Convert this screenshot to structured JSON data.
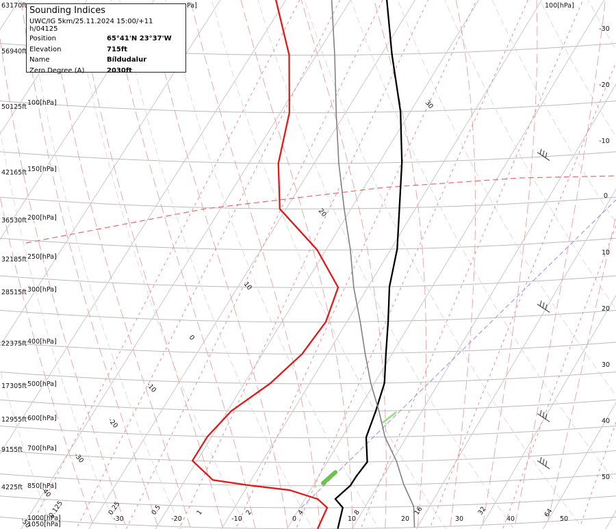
{
  "chart_data": {
    "type": "line",
    "title": "Sounding Indices",
    "subtitle": "UWC/IG 5km/25.11.2024 15:00/+11 h/04125",
    "info": [
      {
        "label": "Position",
        "value": "65°41'N 23°37'W"
      },
      {
        "label": "Elevation",
        "value": "715ft"
      },
      {
        "label": "Name",
        "value": "Bíldudalur"
      },
      {
        "label": "Zero Degree (A)",
        "value": "2030ft"
      }
    ],
    "pressure_levels": [
      {
        "alt": "63170ft",
        "hpa": ""
      },
      {
        "alt": "56940ft",
        "hpa": ""
      },
      {
        "alt": "50125ft",
        "hpa": "100[hPa]"
      },
      {
        "alt": "42165ft",
        "hpa": "150[hPa]"
      },
      {
        "alt": "36530ft",
        "hpa": "200[hPa]"
      },
      {
        "alt": "32185ft",
        "hpa": "250[hPa]"
      },
      {
        "alt": "28515ft",
        "hpa": "300[hPa]"
      },
      {
        "alt": "22375ft",
        "hpa": "400[hPa]"
      },
      {
        "alt": "17305ft",
        "hpa": "500[hPa]"
      },
      {
        "alt": "12955ft",
        "hpa": "600[hPa]"
      },
      {
        "alt": "9155ft",
        "hpa": "700[hPa]"
      },
      {
        "alt": "4225ft",
        "hpa": "850[hPa]"
      },
      {
        "alt": "",
        "hpa": "1000[hPa]"
      },
      {
        "alt": "",
        "hpa": "1050[hPa]"
      }
    ],
    "top_hpa_label": "Pa]",
    "top_right_hpa_label": "100[hPa]",
    "right_axis_ticks": [
      "-30",
      "-20",
      "-10",
      "0",
      "10",
      "20",
      "30",
      "40",
      "50"
    ],
    "bottom_temperature_ticks": [
      "-30",
      "-20",
      "-10",
      "0",
      "10",
      "20",
      "30",
      "40",
      "50"
    ],
    "mixing_ratio_ticks": [
      "0.125",
      "0.25",
      "0.5",
      "1",
      "2",
      "4",
      "8",
      "16",
      "32",
      "64"
    ],
    "isotherm_inline_labels": [
      "30",
      "20",
      "10",
      "0",
      "-10",
      "-20",
      "-30",
      "-40",
      "-50"
    ],
    "series": [
      {
        "name": "",
        "role": "temperature",
        "color": "#000000",
        "points": [
          [
            1050,
            7.7
          ],
          [
            1000,
            6.4
          ],
          [
            980,
            4.4
          ],
          [
            950,
            5.4
          ],
          [
            930,
            5.4
          ],
          [
            900,
            5.7
          ],
          [
            850,
            3.1
          ],
          [
            800,
            2.0
          ],
          [
            750,
            0.6
          ],
          [
            700,
            -2.1
          ],
          [
            650,
            -4.9
          ],
          [
            600,
            -8.1
          ],
          [
            550,
            -10.6
          ],
          [
            500,
            -14.3
          ],
          [
            450,
            -18.4
          ],
          [
            400,
            -23.6
          ],
          [
            350,
            -30.6
          ],
          [
            300,
            -38.1
          ],
          [
            250,
            -47.0
          ],
          [
            200,
            -55.4
          ],
          [
            170,
            -58.9
          ],
          [
            150,
            -58.9
          ],
          [
            130,
            -58.3
          ],
          [
            110,
            -58.8
          ],
          [
            100,
            -58.9
          ],
          [
            80,
            -62.0
          ],
          [
            70,
            -63.4
          ],
          [
            60,
            -61.8
          ]
        ]
      },
      {
        "name": "",
        "role": "dewpoint",
        "color": "#e01818",
        "points": [
          [
            1050,
            4.6
          ],
          [
            1000,
            4.0
          ],
          [
            980,
            1.7
          ],
          [
            960,
            -3.5
          ],
          [
            950,
            -10.3
          ],
          [
            940,
            -16.2
          ],
          [
            900,
            -21.2
          ],
          [
            850,
            -21.3
          ],
          [
            800,
            -20.2
          ],
          [
            750,
            -17.0
          ],
          [
            700,
            -15.0
          ],
          [
            650,
            -14.5
          ],
          [
            600,
            -16.0
          ],
          [
            550,
            -22.9
          ],
          [
            500,
            -32.7
          ],
          [
            450,
            -37.4
          ],
          [
            400,
            -40.7
          ],
          [
            350,
            -46.4
          ],
          [
            300,
            -55.4
          ],
          [
            250,
            -63.8
          ],
          [
            200,
            -68.0
          ],
          [
            170,
            -69.1
          ],
          [
            150,
            -70.0
          ],
          [
            130,
            -74.0
          ],
          [
            100,
            -77.1
          ],
          [
            80,
            -79.5
          ],
          [
            70,
            -82.5
          ],
          [
            60,
            -84.4
          ]
        ]
      },
      {
        "name": "",
        "role": "parcel",
        "color": "#808080",
        "points": [
          [
            1050,
            19.5
          ],
          [
            1000,
            17.3
          ],
          [
            950,
            13.6
          ],
          [
            900,
            10.2
          ],
          [
            850,
            6.0
          ],
          [
            800,
            2.5
          ],
          [
            750,
            -1.5
          ],
          [
            700,
            -5.3
          ],
          [
            650,
            -9.2
          ],
          [
            600,
            -13.6
          ],
          [
            550,
            -17.8
          ],
          [
            500,
            -22.8
          ],
          [
            450,
            -28.1
          ],
          [
            400,
            -33.5
          ],
          [
            350,
            -39.4
          ],
          [
            300,
            -46.5
          ],
          [
            250,
            -54.4
          ],
          [
            200,
            -63.3
          ],
          [
            180,
            -67.0
          ],
          [
            150,
            -55.4
          ],
          [
            120,
            -41.9
          ],
          [
            100,
            -31.5
          ],
          [
            80,
            -18.7
          ],
          [
            70,
            -11.3
          ],
          [
            60,
            -3.2
          ]
        ]
      }
    ],
    "wind_barbs": [
      {
        "hpa": 50
      },
      {
        "hpa": 85
      },
      {
        "hpa": 150
      },
      {
        "hpa": 205
      },
      {
        "hpa": 305
      },
      {
        "hpa": 450
      },
      {
        "hpa": 640
      },
      {
        "hpa": 825
      },
      {
        "hpa": 920
      }
    ]
  }
}
